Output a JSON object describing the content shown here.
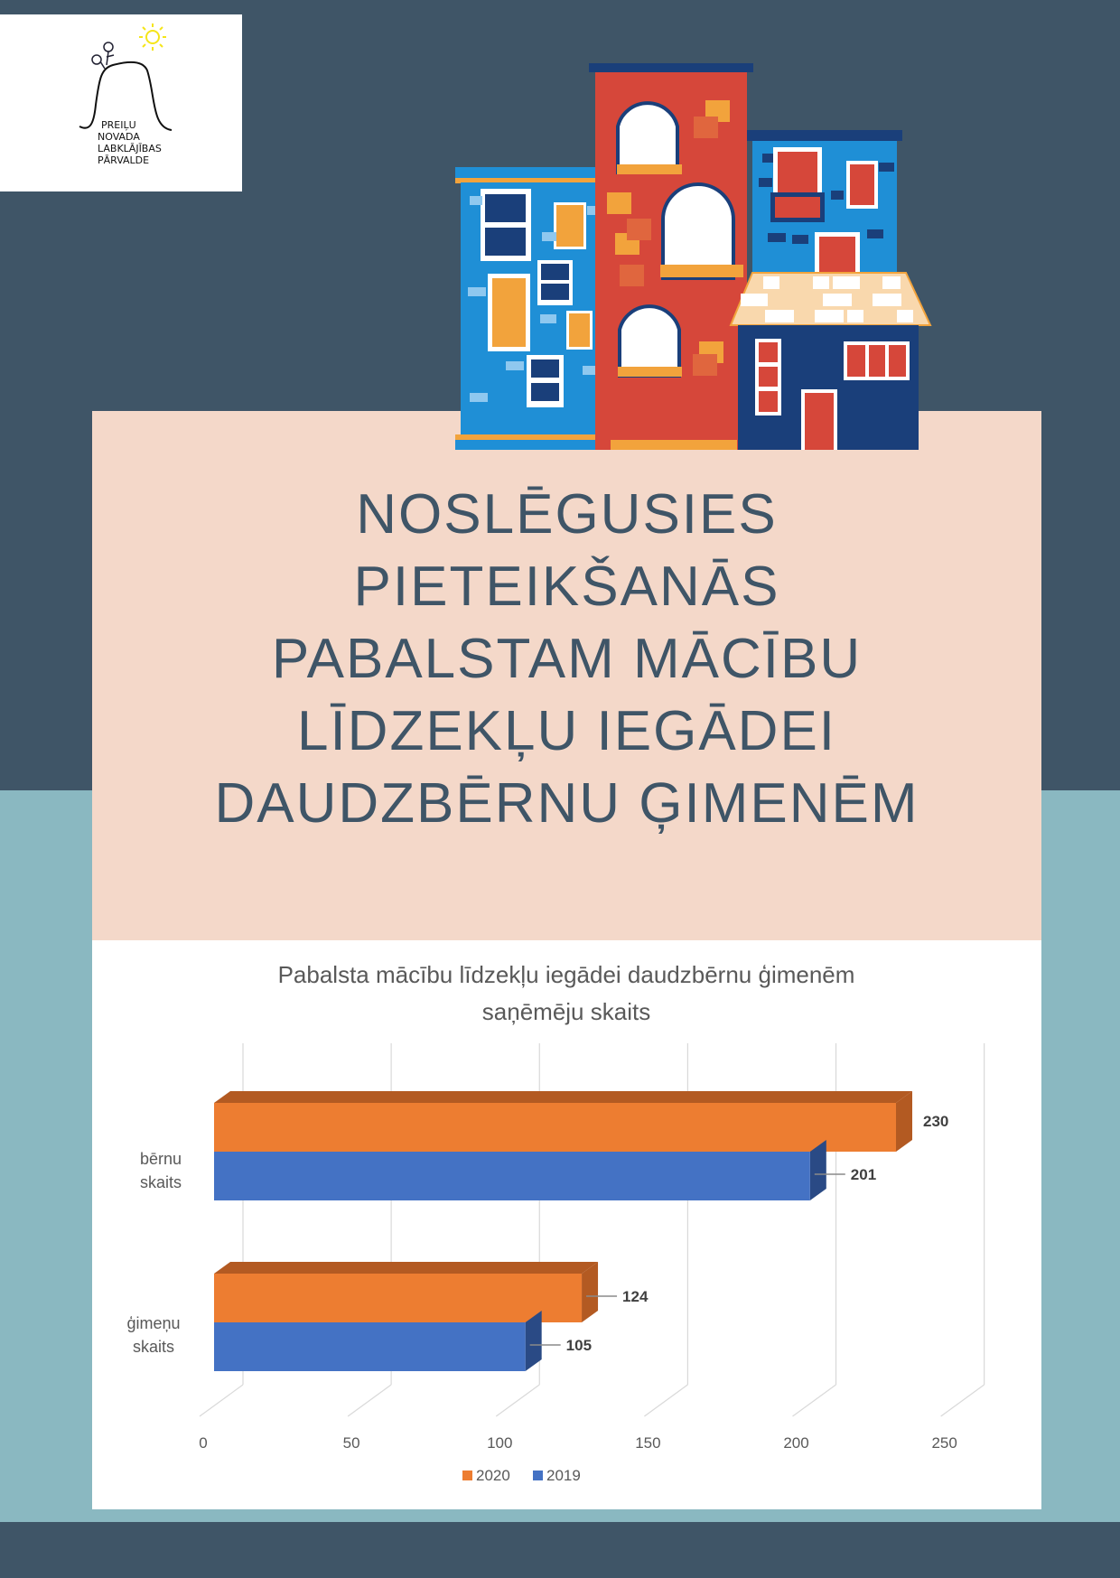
{
  "logo": {
    "lines": [
      "PREIĻU",
      "NOVADA",
      "LABKLĀJĪBAS",
      "PĀRVALDE"
    ]
  },
  "title": {
    "lines": [
      "NOSLĒGUSIES",
      "PIETEIKŠANĀS",
      "PABALSTAM MĀCĪBU",
      "LĪDZEKĻU IEGĀDEI",
      "DAUDZBĒRNU ĢIMENĒM"
    ]
  },
  "colors": {
    "dark": "#3f5567",
    "teal": "#8ab8c1",
    "peach": "#f4d8c9",
    "series_2020": "#ed7d31",
    "series_2019": "#4472c4"
  },
  "chart_data": {
    "type": "bar",
    "orientation": "horizontal",
    "style": "3d-clustered",
    "title_lines": [
      "Pabalsta mācību līdzekļu iegādei daudzbērnu ģimenēm",
      "saņēmēju skaits"
    ],
    "categories": [
      [
        "bērnu",
        "skaits"
      ],
      [
        "ģimeņu",
        "skaits"
      ]
    ],
    "series": [
      {
        "name": "2020",
        "values": [
          230,
          124
        ],
        "color": "#ed7d31"
      },
      {
        "name": "2019",
        "values": [
          201,
          105
        ],
        "color": "#4472c4"
      }
    ],
    "xlim": [
      0,
      250
    ],
    "xticks": [
      "0",
      "50",
      "100",
      "150",
      "200",
      "250"
    ],
    "grid": true,
    "data_labels": true,
    "legend": "bottom"
  }
}
